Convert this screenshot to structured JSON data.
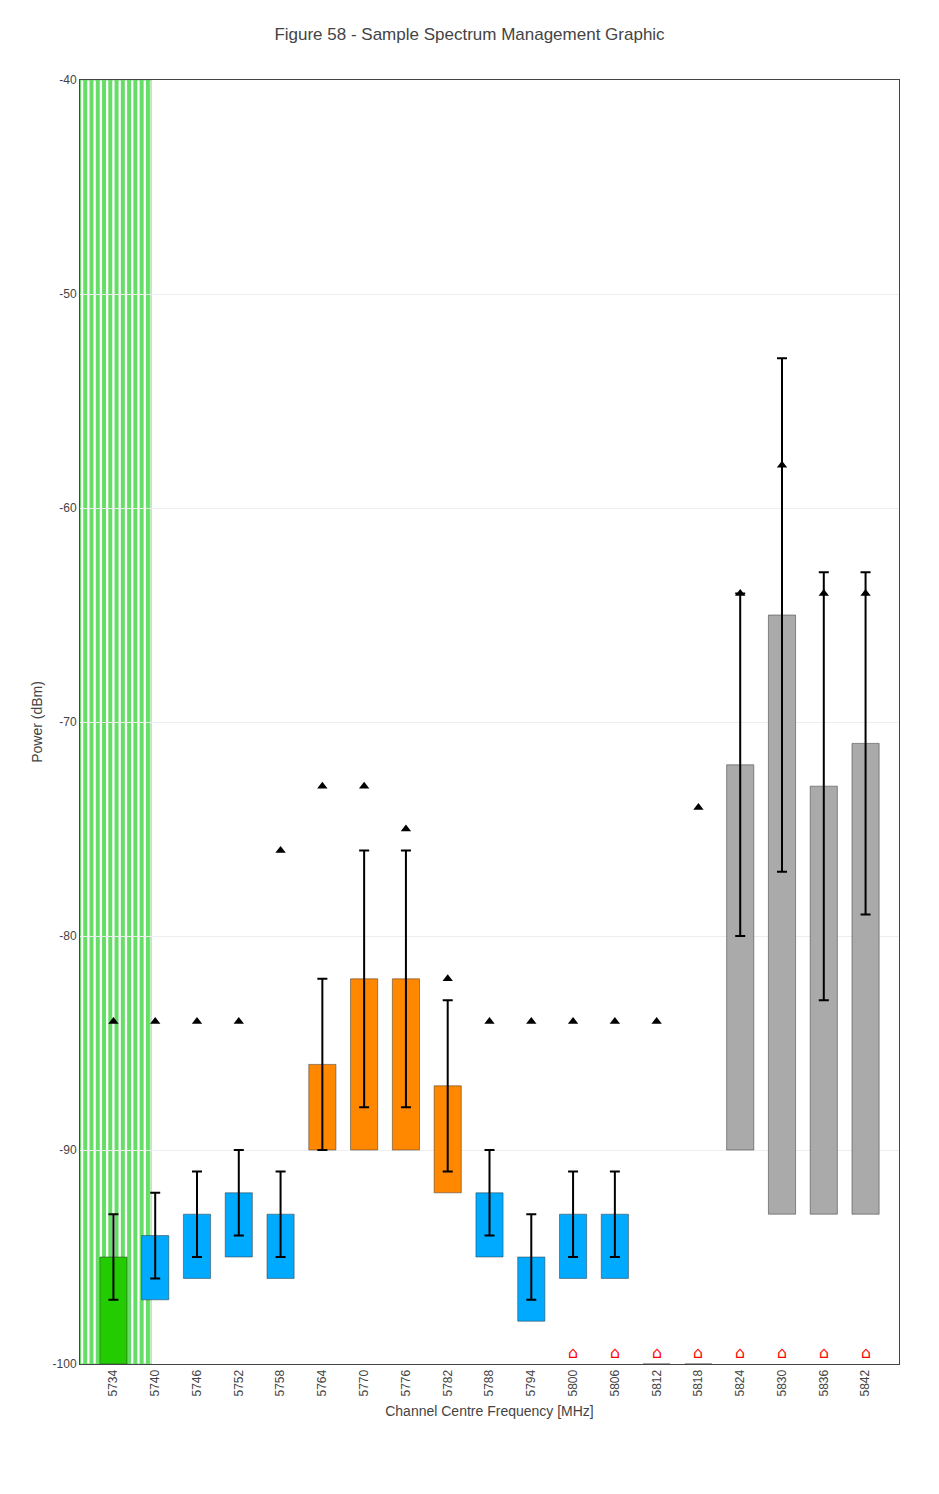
{
  "chart_data": {
    "type": "bar",
    "title": "Figure 58 - Sample Spectrum Management Graphic",
    "xlabel": "Channel Centre Frequency [MHz]",
    "ylabel": "Power (dBm)",
    "categories": [
      "5734",
      "5740",
      "5746",
      "5752",
      "5758",
      "5764",
      "5770",
      "5776",
      "5782",
      "5788",
      "5794",
      "5800",
      "5806",
      "5812",
      "5818",
      "5824",
      "5830",
      "5836",
      "5842"
    ],
    "base": [
      -100,
      -97,
      -96,
      -95,
      -96,
      -90,
      -90,
      -90,
      -92,
      -95,
      -98,
      -96,
      -96,
      -100,
      -100,
      -90,
      -93,
      -93,
      -93
    ],
    "values": [
      -95,
      -94,
      -93,
      -92,
      -93,
      -86,
      -82,
      -82,
      -87,
      -92,
      -95,
      -93,
      -93,
      -100,
      -100,
      -72,
      -65,
      -73,
      -71
    ],
    "colors": [
      "#22CC00",
      "#00AAFF",
      "#00AAFF",
      "#00AAFF",
      "#00AAFF",
      "#FF8800",
      "#FF8800",
      "#FF8800",
      "#FF8800",
      "#00AAFF",
      "#00AAFF",
      "#00AAFF",
      "#00AAFF",
      "#AAAAAA",
      "#AAAAAA",
      "#AAAAAA",
      "#AAAAAA",
      "#AAAAAA",
      "#AAAAAA"
    ],
    "error_low": [
      2,
      2,
      2,
      2,
      2,
      4,
      6,
      6,
      4,
      2,
      2,
      2,
      2,
      0,
      0,
      8,
      12,
      10,
      8
    ],
    "error_high": [
      2,
      2,
      2,
      2,
      2,
      4,
      6,
      6,
      4,
      2,
      2,
      2,
      2,
      0,
      0,
      8,
      12,
      10,
      8
    ],
    "peak_values": [
      -84,
      -84,
      -84,
      -84,
      -76,
      -73,
      -73,
      -75,
      -82,
      -84,
      -84,
      -84,
      -84,
      -84,
      -74,
      -64,
      -58,
      -64,
      -64
    ],
    "marker": "triangle-up",
    "active_category": "5734",
    "annotations": [
      {
        "category": "5800",
        "text": "⌂",
        "color": "#FF0000"
      },
      {
        "category": "5806",
        "text": "⌂",
        "color": "#FF0000"
      },
      {
        "category": "5812",
        "text": "⌂",
        "color": "#FF0000"
      },
      {
        "category": "5818",
        "text": "⌂",
        "color": "#FF0000"
      },
      {
        "category": "5824",
        "text": "⌂",
        "color": "#FF0000"
      },
      {
        "category": "5830",
        "text": "⌂",
        "color": "#FF0000"
      },
      {
        "category": "5836",
        "text": "⌂",
        "color": "#FF0000"
      },
      {
        "category": "5842",
        "text": "⌂",
        "color": "#FF0000"
      }
    ],
    "ylim": [
      -100,
      -40
    ],
    "yticks": [
      -100,
      -90,
      -80,
      -70,
      -60,
      -50,
      -40
    ],
    "grid": true
  }
}
